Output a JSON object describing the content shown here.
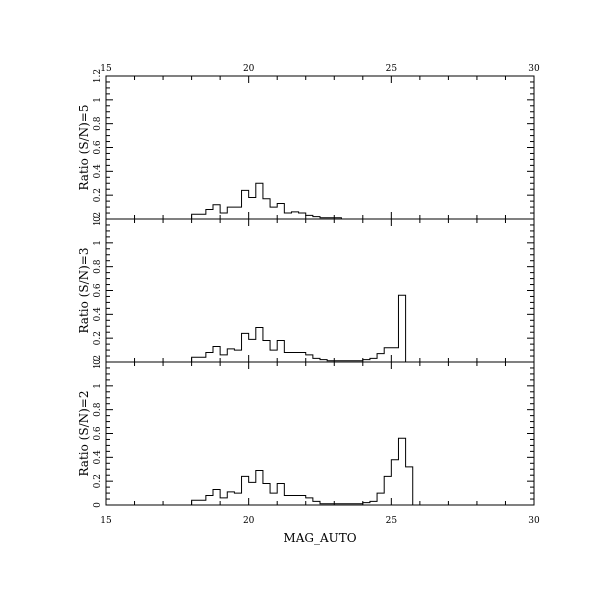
{
  "chart_data": {
    "type": "histogram",
    "xlabel": "MAG_AUTO",
    "xlim": [
      15,
      30
    ],
    "x_ticks": [
      "15",
      "20",
      "25",
      "30"
    ],
    "bin_width": 0.25,
    "bin_start": 18.0,
    "panels": [
      {
        "ylabel": "Ratio (S/N)=5",
        "ylim": [
          0,
          1.2
        ],
        "y_ticks": [
          "0",
          "0.2",
          "0.4",
          "0.6",
          "0.8",
          "1",
          "1.2"
        ],
        "top_tick_labels": [
          "15",
          "20",
          "25",
          "30"
        ],
        "values": [
          0.04,
          0.04,
          0.08,
          0.12,
          0.05,
          0.1,
          0.1,
          0.24,
          0.18,
          0.3,
          0.17,
          0.1,
          0.13,
          0.05,
          0.06,
          0.05,
          0.03,
          0.02,
          0.01,
          0.01,
          0.01,
          0,
          0,
          0,
          0,
          0,
          0,
          0,
          0,
          0,
          0,
          0
        ]
      },
      {
        "ylabel": "Ratio (S/N)=3",
        "ylim": [
          0,
          1.2
        ],
        "y_ticks": [
          "0",
          "0.2",
          "0.4",
          "0.6",
          "0.8",
          "1",
          "1.2"
        ],
        "top_tick_labels": [],
        "values": [
          0.04,
          0.04,
          0.08,
          0.13,
          0.06,
          0.11,
          0.1,
          0.24,
          0.19,
          0.29,
          0.18,
          0.1,
          0.18,
          0.08,
          0.08,
          0.08,
          0.06,
          0.03,
          0.02,
          0.01,
          0.01,
          0.01,
          0.01,
          0.01,
          0.02,
          0.03,
          0.07,
          0.12,
          0.12,
          0.56,
          0,
          0
        ]
      },
      {
        "ylabel": "Ratio (S/N)=2",
        "ylim": [
          0,
          1.2
        ],
        "y_ticks": [
          "0",
          "0.2",
          "0.4",
          "0.6",
          "0.8",
          "1",
          "1.2"
        ],
        "top_tick_labels": [],
        "values": [
          0.04,
          0.04,
          0.08,
          0.13,
          0.06,
          0.11,
          0.1,
          0.24,
          0.19,
          0.29,
          0.18,
          0.1,
          0.18,
          0.08,
          0.08,
          0.08,
          0.06,
          0.03,
          0.01,
          0.01,
          0.01,
          0.01,
          0.01,
          0.01,
          0.02,
          0.03,
          0.1,
          0.24,
          0.38,
          0.56,
          0.32,
          0
        ]
      }
    ]
  }
}
